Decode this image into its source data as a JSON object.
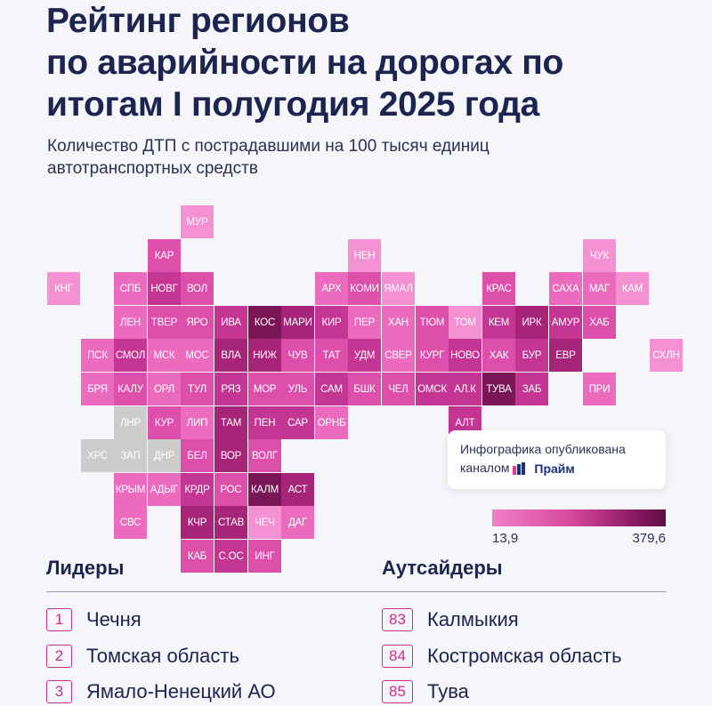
{
  "header": {
    "title_lines": [
      "Рейтинг регионов",
      "по аварийности на дорогах по",
      "итогам I полугодия 2025 года"
    ],
    "subtitle_lines": [
      "Количество ДТП с пострадавшими на 100 тысяч единиц",
      "автотранспортных средств"
    ]
  },
  "chart_data": {
    "type": "heatmap",
    "title": "Рейтинг регионов по аварийности на дорогах по итогам I полугодия 2025 года",
    "subtitle": "Количество ДТП с пострадавшими на 100 тысяч единиц автотранспортных средств",
    "scale": {
      "min_label": "13,9",
      "max_label": "379,6",
      "min": 13.9,
      "max": 379.6
    },
    "no_data_color": "#cccccc",
    "level_colors": [
      "#f491d2",
      "#eb6cbf",
      "#de4fab",
      "#c53594",
      "#a62578",
      "#7a1656"
    ],
    "cells": [
      {
        "code": "МУР",
        "row": 0,
        "col": 5,
        "level": 1
      },
      {
        "code": "КАР",
        "row": 1,
        "col": 4,
        "level": 3
      },
      {
        "code": "НЕН",
        "row": 1,
        "col": 10,
        "level": 1
      },
      {
        "code": "ЧУК",
        "row": 1,
        "col": 17,
        "level": 1
      },
      {
        "code": "КНГ",
        "row": 2,
        "col": 1,
        "level": 1
      },
      {
        "code": "СПБ",
        "row": 2,
        "col": 3,
        "level": 2
      },
      {
        "code": "НОВГ",
        "row": 2,
        "col": 4,
        "level": 4
      },
      {
        "code": "ВОЛ",
        "row": 2,
        "col": 5,
        "level": 3
      },
      {
        "code": "АРХ",
        "row": 2,
        "col": 9,
        "level": 2
      },
      {
        "code": "КОМИ",
        "row": 2,
        "col": 10,
        "level": 3
      },
      {
        "code": "ЯМАЛ",
        "row": 2,
        "col": 11,
        "level": 1
      },
      {
        "code": "КРАС",
        "row": 2,
        "col": 14,
        "level": 3
      },
      {
        "code": "САХА",
        "row": 2,
        "col": 16,
        "level": 2
      },
      {
        "code": "МАГ",
        "row": 2,
        "col": 17,
        "level": 2
      },
      {
        "code": "КАМ",
        "row": 2,
        "col": 18,
        "level": 1
      },
      {
        "code": "ЛЕН",
        "row": 3,
        "col": 3,
        "level": 2
      },
      {
        "code": "ТВЕР",
        "row": 3,
        "col": 4,
        "level": 3
      },
      {
        "code": "ЯРО",
        "row": 3,
        "col": 5,
        "level": 3
      },
      {
        "code": "ИВА",
        "row": 3,
        "col": 6,
        "level": 4
      },
      {
        "code": "КОС",
        "row": 3,
        "col": 7,
        "level": 6
      },
      {
        "code": "МАРИ",
        "row": 3,
        "col": 8,
        "level": 5
      },
      {
        "code": "КИР",
        "row": 3,
        "col": 9,
        "level": 4
      },
      {
        "code": "ПЕР",
        "row": 3,
        "col": 10,
        "level": 2
      },
      {
        "code": "ХАН",
        "row": 3,
        "col": 11,
        "level": 2
      },
      {
        "code": "ТЮМ",
        "row": 3,
        "col": 12,
        "level": 3
      },
      {
        "code": "ТОМ",
        "row": 3,
        "col": 13,
        "level": 1
      },
      {
        "code": "КЕМ",
        "row": 3,
        "col": 14,
        "level": 4
      },
      {
        "code": "ИРК",
        "row": 3,
        "col": 15,
        "level": 5
      },
      {
        "code": "АМУР",
        "row": 3,
        "col": 16,
        "level": 4
      },
      {
        "code": "ХАБ",
        "row": 3,
        "col": 17,
        "level": 3
      },
      {
        "code": "ПСК",
        "row": 4,
        "col": 2,
        "level": 2
      },
      {
        "code": "СМОЛ",
        "row": 4,
        "col": 3,
        "level": 4
      },
      {
        "code": "МСК",
        "row": 4,
        "col": 4,
        "level": 2
      },
      {
        "code": "МОС",
        "row": 4,
        "col": 5,
        "level": 2
      },
      {
        "code": "ВЛА",
        "row": 4,
        "col": 6,
        "level": 5
      },
      {
        "code": "НИЖ",
        "row": 4,
        "col": 7,
        "level": 5
      },
      {
        "code": "ЧУВ",
        "row": 4,
        "col": 8,
        "level": 3
      },
      {
        "code": "ТАТ",
        "row": 4,
        "col": 9,
        "level": 3
      },
      {
        "code": "УДМ",
        "row": 4,
        "col": 10,
        "level": 4
      },
      {
        "code": "СВЕР",
        "row": 4,
        "col": 11,
        "level": 2
      },
      {
        "code": "КУРГ",
        "row": 4,
        "col": 12,
        "level": 3
      },
      {
        "code": "НОВО",
        "row": 4,
        "col": 13,
        "level": 4
      },
      {
        "code": "ХАК",
        "row": 4,
        "col": 14,
        "level": 3
      },
      {
        "code": "БУР",
        "row": 4,
        "col": 15,
        "level": 4
      },
      {
        "code": "ЕВР",
        "row": 4,
        "col": 16,
        "level": 5
      },
      {
        "code": "СХЛН",
        "row": 4,
        "col": 19,
        "level": 1
      },
      {
        "code": "БРЯ",
        "row": 5,
        "col": 2,
        "level": 2
      },
      {
        "code": "КАЛУ",
        "row": 5,
        "col": 3,
        "level": 3
      },
      {
        "code": "ОРЛ",
        "row": 5,
        "col": 4,
        "level": 2
      },
      {
        "code": "ТУЛ",
        "row": 5,
        "col": 5,
        "level": 3
      },
      {
        "code": "РЯЗ",
        "row": 5,
        "col": 6,
        "level": 4
      },
      {
        "code": "МОР",
        "row": 5,
        "col": 7,
        "level": 3
      },
      {
        "code": "УЛЬ",
        "row": 5,
        "col": 8,
        "level": 3
      },
      {
        "code": "САМ",
        "row": 5,
        "col": 9,
        "level": 4
      },
      {
        "code": "БШК",
        "row": 5,
        "col": 10,
        "level": 3
      },
      {
        "code": "ЧЕЛ",
        "row": 5,
        "col": 11,
        "level": 3
      },
      {
        "code": "ОМСК",
        "row": 5,
        "col": 12,
        "level": 4
      },
      {
        "code": "АЛ.К",
        "row": 5,
        "col": 13,
        "level": 4
      },
      {
        "code": "ТУВА",
        "row": 5,
        "col": 14,
        "level": 6
      },
      {
        "code": "ЗАБ",
        "row": 5,
        "col": 15,
        "level": 4
      },
      {
        "code": "ПРИ",
        "row": 5,
        "col": 17,
        "level": 2
      },
      {
        "code": "ЛНР",
        "row": 6,
        "col": 3,
        "level": 0
      },
      {
        "code": "КУР",
        "row": 6,
        "col": 4,
        "level": 3
      },
      {
        "code": "ЛИП",
        "row": 6,
        "col": 5,
        "level": 2
      },
      {
        "code": "ТАМ",
        "row": 6,
        "col": 6,
        "level": 5
      },
      {
        "code": "ПЕН",
        "row": 6,
        "col": 7,
        "level": 4
      },
      {
        "code": "САР",
        "row": 6,
        "col": 8,
        "level": 4
      },
      {
        "code": "ОРНБ",
        "row": 6,
        "col": 9,
        "level": 2
      },
      {
        "code": "АЛТ",
        "row": 6,
        "col": 13,
        "level": 4
      },
      {
        "code": "ХРС",
        "row": 7,
        "col": 2,
        "level": 0
      },
      {
        "code": "ЗАП",
        "row": 7,
        "col": 3,
        "level": 0
      },
      {
        "code": "ДНР",
        "row": 7,
        "col": 4,
        "level": 0
      },
      {
        "code": "БЕЛ",
        "row": 7,
        "col": 5,
        "level": 3
      },
      {
        "code": "ВОР",
        "row": 7,
        "col": 6,
        "level": 5
      },
      {
        "code": "ВОЛГ",
        "row": 7,
        "col": 7,
        "level": 3
      },
      {
        "code": "КРЫМ",
        "row": 8,
        "col": 3,
        "level": 2
      },
      {
        "code": "АДЫГ",
        "row": 8,
        "col": 4,
        "level": 2
      },
      {
        "code": "КРДР",
        "row": 8,
        "col": 5,
        "level": 4
      },
      {
        "code": "РОС",
        "row": 8,
        "col": 6,
        "level": 3
      },
      {
        "code": "КАЛМ",
        "row": 8,
        "col": 7,
        "level": 6
      },
      {
        "code": "АСТ",
        "row": 8,
        "col": 8,
        "level": 5
      },
      {
        "code": "СВС",
        "row": 9,
        "col": 3,
        "level": 2
      },
      {
        "code": "КЧР",
        "row": 9,
        "col": 5,
        "level": 5
      },
      {
        "code": "СТАВ",
        "row": 9,
        "col": 6,
        "level": 5
      },
      {
        "code": "ЧЕЧ",
        "row": 9,
        "col": 7,
        "level": 1
      },
      {
        "code": "ДАГ",
        "row": 9,
        "col": 8,
        "level": 2
      },
      {
        "code": "КАБ",
        "row": 10,
        "col": 5,
        "level": 3
      },
      {
        "code": "С.ОС",
        "row": 10,
        "col": 6,
        "level": 4
      },
      {
        "code": "ИНГ",
        "row": 10,
        "col": 7,
        "level": 3
      }
    ]
  },
  "note": {
    "text": "Инфографика опубликована каналом",
    "logo_name": "Прайм"
  },
  "leaders": {
    "heading": "Лидеры",
    "items": [
      {
        "rank": "1",
        "name": "Чечня"
      },
      {
        "rank": "2",
        "name": "Томская область"
      },
      {
        "rank": "3",
        "name": "Ямало-Ненецкий АО"
      }
    ]
  },
  "outsiders": {
    "heading": "Аутсайдеры",
    "items": [
      {
        "rank": "83",
        "name": "Калмыкия"
      },
      {
        "rank": "84",
        "name": "Костромская область"
      },
      {
        "rank": "85",
        "name": "Тува"
      }
    ]
  }
}
